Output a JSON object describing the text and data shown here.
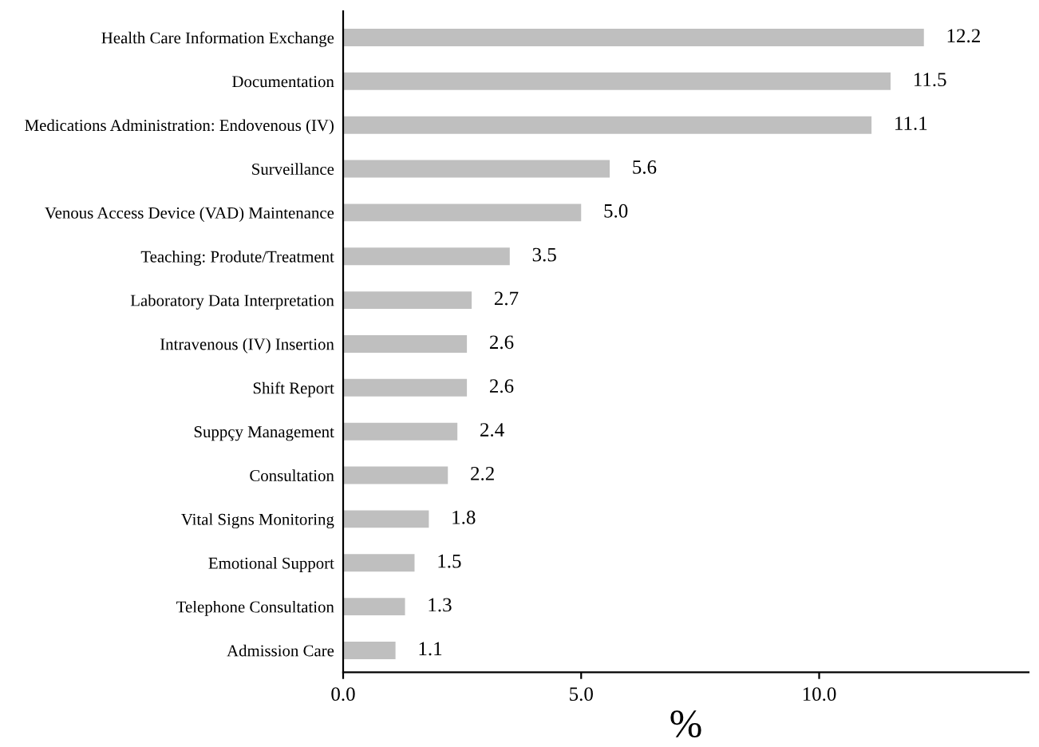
{
  "chart_data": {
    "type": "bar",
    "orientation": "horizontal",
    "categories": [
      "Health Care Information Exchange",
      "Documentation",
      "Medications Administration: Endovenous (IV)",
      "Surveillance",
      "Venous Access Device (VAD) Maintenance",
      "Teaching: Produte/Treatment",
      "Laboratory Data Interpretation",
      "Intravenous (IV) Insertion",
      "Shift Report",
      "Suppçy Management",
      "Consultation",
      "Vital Signs Monitoring",
      "Emotional Support",
      "Telephone Consultation",
      "Admission Care"
    ],
    "values": [
      12.2,
      11.5,
      11.1,
      5.6,
      5.0,
      3.5,
      2.7,
      2.6,
      2.6,
      2.4,
      2.2,
      1.8,
      1.5,
      1.3,
      1.1
    ],
    "value_labels": [
      "12.2",
      "11.5",
      "11.1",
      "5.6",
      "5.0",
      "3.5",
      "2.7",
      "2.6",
      "2.6",
      "2.4",
      "2.2",
      "1.8",
      "1.5",
      "1.3",
      "1.1"
    ],
    "color": "#bfbfbf",
    "xlabel": "%",
    "xlim": [
      0,
      14.4
    ],
    "xticks": [
      {
        "value": 0,
        "label": "0.0"
      },
      {
        "value": 5,
        "label": "5.0"
      },
      {
        "value": 10,
        "label": "10.0"
      }
    ],
    "grid": false,
    "legend": false
  }
}
